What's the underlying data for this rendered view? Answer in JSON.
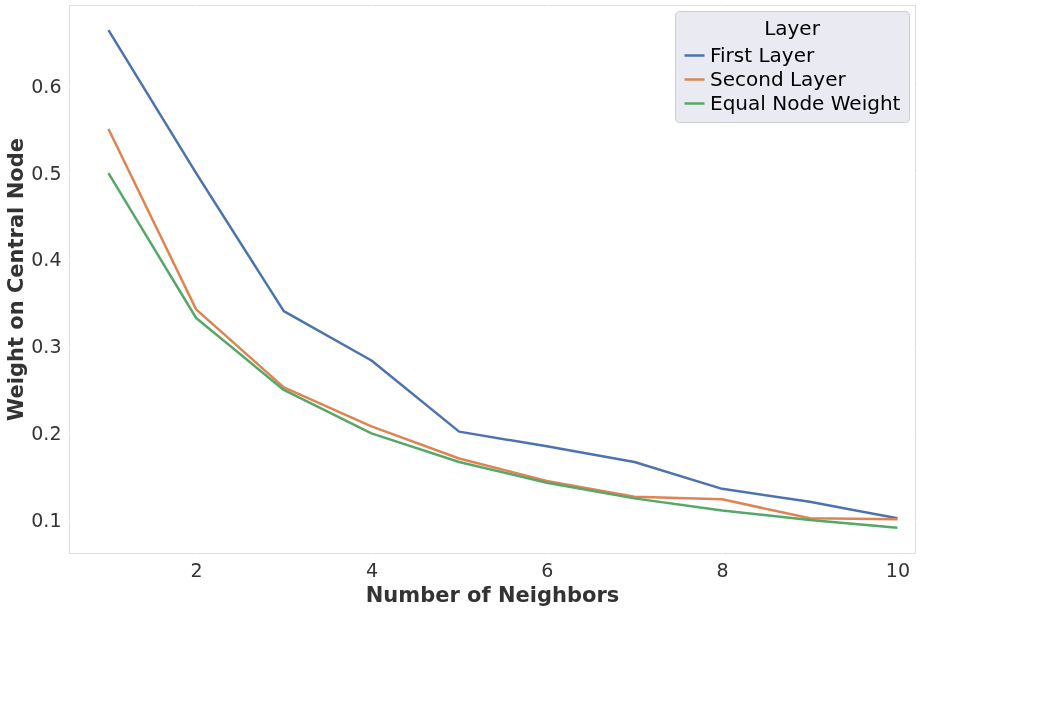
{
  "chart_data": {
    "type": "line",
    "xlabel": "Number of Neighbors",
    "ylabel": "Weight on Central Node",
    "legend_title": "Layer",
    "x": [
      1,
      2,
      3,
      4,
      5,
      6,
      7,
      8,
      9,
      10
    ],
    "series": [
      {
        "name": "First Layer",
        "color": "#4c72b0",
        "values": [
          0.665,
          0.5,
          0.341,
          0.284,
          0.202,
          0.185,
          0.167,
          0.136,
          0.121,
          0.102
        ]
      },
      {
        "name": "Second Layer",
        "color": "#dd8452",
        "values": [
          0.551,
          0.343,
          0.253,
          0.208,
          0.171,
          0.145,
          0.127,
          0.124,
          0.102,
          0.101
        ]
      },
      {
        "name": "Equal Node Weight",
        "color": "#55a868",
        "values": [
          0.5,
          0.333,
          0.25,
          0.2,
          0.167,
          0.143,
          0.125,
          0.111,
          0.1,
          0.091
        ]
      }
    ],
    "xlim": [
      0.55,
      10.2
    ],
    "ylim": [
      0.062,
      0.694
    ],
    "xticks": [
      2,
      4,
      6,
      8,
      10
    ],
    "yticks": [
      0.1,
      0.2,
      0.3,
      0.4,
      0.5,
      0.6
    ],
    "grid": true,
    "legend": "top right",
    "marker": "none",
    "line_style": "solid"
  }
}
